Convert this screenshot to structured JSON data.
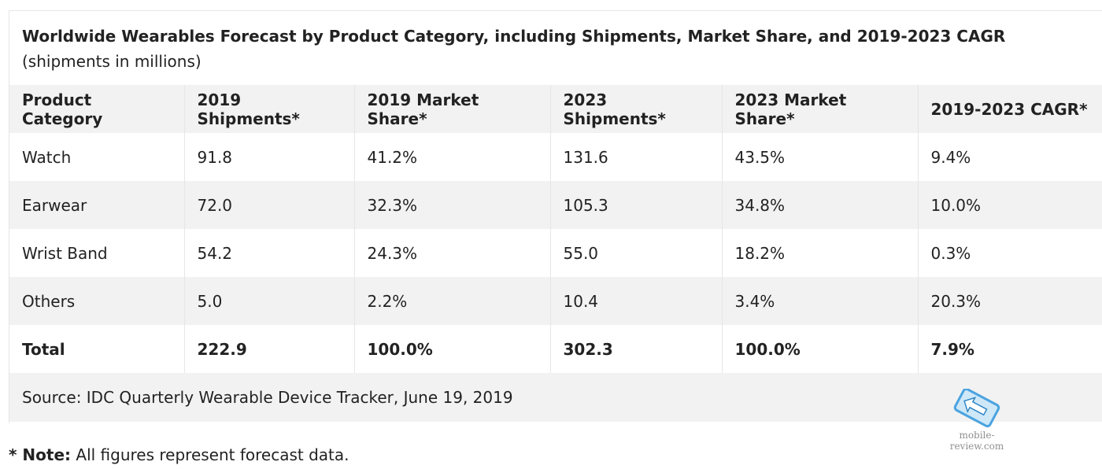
{
  "caption": {
    "title": "Worldwide Wearables Forecast by Product Category, including Shipments, Market Share, and 2019-2023 CAGR",
    "suffix": "(shipments in millions)"
  },
  "table": {
    "headers": [
      "Product Category",
      "2019 Shipments*",
      "2019 Market Share*",
      "2023 Shipments*",
      "2023 Market Share*",
      "2019-2023 CAGR*"
    ],
    "rows": [
      [
        "Watch",
        "91.8",
        "41.2%",
        "131.6",
        "43.5%",
        "9.4%"
      ],
      [
        "Earwear",
        "72.0",
        "32.3%",
        "105.3",
        "34.8%",
        "10.0%"
      ],
      [
        "Wrist Band",
        "54.2",
        "24.3%",
        "55.0",
        "18.2%",
        "0.3%"
      ],
      [
        "Others",
        "5.0",
        "2.2%",
        "10.4",
        "3.4%",
        "20.3%"
      ]
    ],
    "total": [
      "Total",
      "222.9",
      "100.0%",
      "302.3",
      "100.0%",
      "7.9%"
    ],
    "source": "Source: IDC Quarterly Wearable Device Tracker, June 19, 2019"
  },
  "note": {
    "label": "* Note:",
    "text": "All figures represent forecast data."
  },
  "watermark": {
    "text": "mobile-review.com",
    "accent_color": "#4aa3e0"
  }
}
